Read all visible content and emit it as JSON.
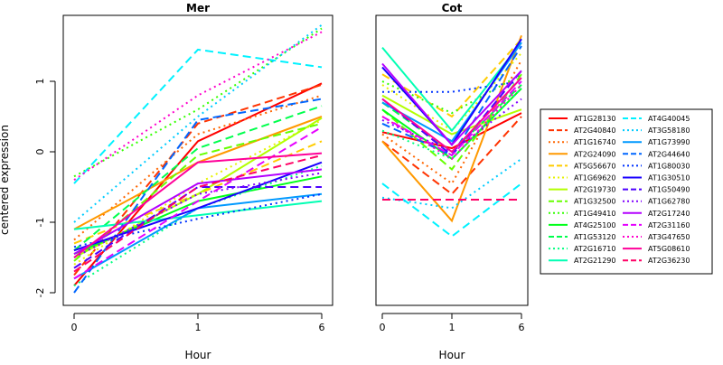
{
  "chart_data": [
    {
      "type": "line",
      "title": "Mer",
      "xlabel": "Hour",
      "ylabel": "centered expression",
      "x_ticks": [
        "0",
        "1",
        "6"
      ],
      "y_ticks": [
        "-2",
        "-1",
        "0",
        "1"
      ],
      "ylim": [
        -2.2,
        1.9
      ],
      "series": [
        {
          "name": "AT1G28130",
          "values": [
            -1.9,
            0.15,
            0.97
          ]
        },
        {
          "name": "AT2G40840",
          "values": [
            -1.75,
            0.4,
            0.95
          ]
        },
        {
          "name": "AT1G16740",
          "values": [
            -1.25,
            0.25,
            0.8
          ]
        },
        {
          "name": "AT2G24090",
          "values": [
            -1.1,
            -0.15,
            0.5
          ]
        },
        {
          "name": "AT5G56670",
          "values": [
            -1.3,
            -0.6,
            0.15
          ]
        },
        {
          "name": "AT1G69620",
          "values": [
            -1.6,
            -0.45,
            0.45
          ]
        },
        {
          "name": "AT2G19730",
          "values": [
            -1.5,
            -0.6,
            0.48
          ]
        },
        {
          "name": "AT1G32500",
          "values": [
            -1.55,
            -0.05,
            0.4
          ]
        },
        {
          "name": "AT1G49410",
          "values": [
            -0.35,
            0.6,
            1.75
          ]
        },
        {
          "name": "AT4G25100",
          "values": [
            -1.45,
            -0.7,
            -0.35
          ]
        },
        {
          "name": "AT1G53120",
          "values": [
            -1.4,
            0.05,
            0.65
          ]
        },
        {
          "name": "AT2G16710",
          "values": [
            -1.9,
            -0.8,
            -0.2
          ]
        },
        {
          "name": "AT2G21290",
          "values": [
            -1.1,
            -0.9,
            -0.7
          ]
        },
        {
          "name": "AT4G40045",
          "values": [
            -0.45,
            1.45,
            1.2
          ]
        },
        {
          "name": "AT3G58180",
          "values": [
            -1.0,
            0.5,
            1.8
          ]
        },
        {
          "name": "AT1G73990",
          "values": [
            -1.8,
            -0.8,
            -0.6
          ]
        },
        {
          "name": "AT2G44640",
          "values": [
            -2.0,
            0.45,
            0.75
          ]
        },
        {
          "name": "AT1G80030",
          "values": [
            -1.35,
            -0.95,
            -0.6
          ]
        },
        {
          "name": "AT1G30510",
          "values": [
            -1.4,
            -0.8,
            -0.15
          ]
        },
        {
          "name": "AT1G50490",
          "values": [
            -1.65,
            -0.5,
            -0.5
          ]
        },
        {
          "name": "AT1G62780",
          "values": [
            -1.5,
            -0.6,
            -0.3
          ]
        },
        {
          "name": "AT2G17240",
          "values": [
            -1.45,
            -0.45,
            -0.25
          ]
        },
        {
          "name": "AT2G31160",
          "values": [
            -1.8,
            -0.7,
            0.35
          ]
        },
        {
          "name": "AT3G47650",
          "values": [
            -0.4,
            0.8,
            1.7
          ]
        },
        {
          "name": "AT5G08610",
          "values": [
            -1.5,
            -0.15,
            -0.02
          ]
        },
        {
          "name": "AT2G36230",
          "values": [
            -1.7,
            -0.5,
            -0.05
          ]
        }
      ]
    },
    {
      "type": "line",
      "title": "Cot",
      "xlabel": "Hour",
      "ylabel": "",
      "x_ticks": [
        "0",
        "1",
        "6"
      ],
      "y_ticks": [],
      "ylim": [
        -2.2,
        1.9
      ],
      "series": [
        {
          "name": "AT1G28130",
          "values": [
            0.28,
            0.05,
            0.55
          ]
        },
        {
          "name": "AT2G40840",
          "values": [
            0.15,
            -0.6,
            0.5
          ]
        },
        {
          "name": "AT1G16740",
          "values": [
            0.25,
            -0.45,
            1.3
          ]
        },
        {
          "name": "AT2G24090",
          "values": [
            0.15,
            -0.98,
            1.65
          ]
        },
        {
          "name": "AT5G56670",
          "values": [
            1.1,
            0.5,
            1.6
          ]
        },
        {
          "name": "AT1G69620",
          "values": [
            0.95,
            0.3,
            1.4
          ]
        },
        {
          "name": "AT2G19730",
          "values": [
            0.8,
            0.25,
            0.6
          ]
        },
        {
          "name": "AT1G32500",
          "values": [
            0.6,
            -0.25,
            1.1
          ]
        },
        {
          "name": "AT1G49410",
          "values": [
            1.0,
            0.55,
            1.1
          ]
        },
        {
          "name": "AT4G25100",
          "values": [
            0.6,
            -0.1,
            0.9
          ]
        },
        {
          "name": "AT1G53120",
          "values": [
            0.7,
            0.0,
            0.95
          ]
        },
        {
          "name": "AT2G16710",
          "values": [
            0.3,
            -0.1,
            0.9
          ]
        },
        {
          "name": "AT2G21290",
          "values": [
            1.48,
            0.3,
            1.55
          ]
        },
        {
          "name": "AT4G40045",
          "values": [
            -0.45,
            -1.2,
            -0.45
          ]
        },
        {
          "name": "AT3G58180",
          "values": [
            -0.65,
            -0.8,
            -0.1
          ]
        },
        {
          "name": "AT1G73990",
          "values": [
            0.7,
            0.15,
            1.55
          ]
        },
        {
          "name": "AT2G44640",
          "values": [
            0.4,
            -0.05,
            1.5
          ]
        },
        {
          "name": "AT1G80030",
          "values": [
            0.85,
            0.85,
            1.0
          ]
        },
        {
          "name": "AT1G30510",
          "values": [
            1.2,
            0.1,
            1.6
          ]
        },
        {
          "name": "AT1G50490",
          "values": [
            0.75,
            -0.05,
            1.15
          ]
        },
        {
          "name": "AT1G62780",
          "values": [
            0.45,
            0.0,
            0.75
          ]
        },
        {
          "name": "AT2G17240",
          "values": [
            1.25,
            0.1,
            1.15
          ]
        },
        {
          "name": "AT2G31160",
          "values": [
            0.5,
            -0.05,
            1.0
          ]
        },
        {
          "name": "AT3G47650",
          "values": [
            0.5,
            -0.1,
            0.95
          ]
        },
        {
          "name": "AT5G08610",
          "values": [
            0.75,
            0.0,
            1.05
          ]
        },
        {
          "name": "AT2G36230",
          "values": [
            -0.68,
            -0.68,
            -0.68
          ]
        }
      ]
    }
  ],
  "legend": {
    "position": "right",
    "colors": [
      "#FF0000",
      "#FF3300",
      "#FF6600",
      "#FF9900",
      "#FFCC00",
      "#E6F200",
      "#B3FF00",
      "#66FF00",
      "#33FF00",
      "#00FF19",
      "#00FF4D",
      "#00FF80",
      "#00FFB3",
      "#00F2FF",
      "#00CCFF",
      "#0099FF",
      "#0066FF",
      "#0033FF",
      "#1A00FF",
      "#4D00FF",
      "#8000FF",
      "#B300FF",
      "#E600FF",
      "#FF00CC",
      "#FF0099",
      "#FF0066"
    ],
    "line_styles": [
      "solid",
      "dashed",
      "dotted"
    ]
  }
}
